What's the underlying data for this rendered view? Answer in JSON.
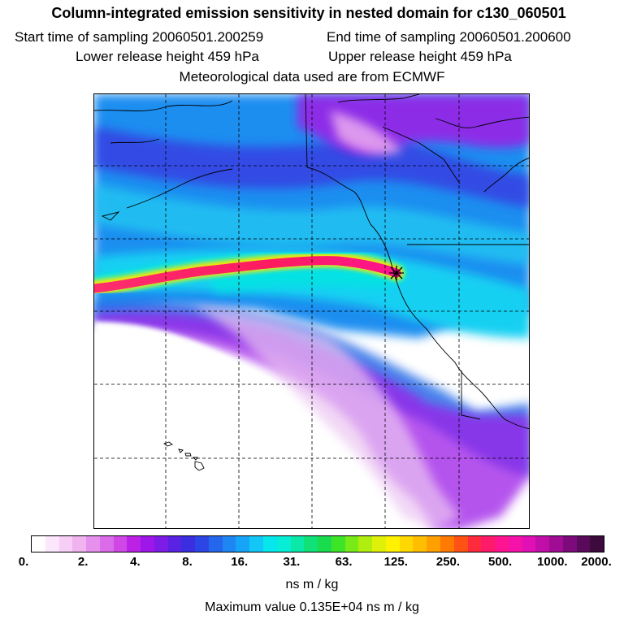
{
  "header": {
    "title": "Column-integrated emission sensitivity in nested domain for c130_060501",
    "start_label": "Start time of sampling 20060501.200259",
    "end_label": "End time of sampling 20060501.200600",
    "lower_label": "Lower release height  459 hPa",
    "upper_label": "Upper release height  459 hPa",
    "met_label": "Meteorological data used are from ECMWF"
  },
  "map": {
    "release_marker": "release-point-star",
    "plume_peak_color": "#ff1493",
    "background_field_color": "#00a8ff"
  },
  "colorbar": {
    "tick_labels": [
      "0.",
      "2.",
      "4.",
      "8.",
      "16.",
      "31.",
      "63.",
      "125.",
      "250.",
      "500.",
      "1000.",
      "2000."
    ],
    "tick_values": [
      0,
      2,
      4,
      8,
      16,
      31,
      63,
      125,
      250,
      500,
      1000,
      2000
    ],
    "colors": [
      "#ffffff",
      "#fbe6fb",
      "#f6cef6",
      "#f0b3f0",
      "#e690ee",
      "#db6be9",
      "#cf47e6",
      "#bb22e6",
      "#9e16e8",
      "#7d1ce6",
      "#5a22e4",
      "#3b2ee0",
      "#2c46e6",
      "#2466ec",
      "#1d86f2",
      "#16a4f8",
      "#12c6f6",
      "#06e6ec",
      "#08eed6",
      "#0ce8a8",
      "#10e278",
      "#18dc4e",
      "#3ee428",
      "#78ea18",
      "#b0ee10",
      "#e0f008",
      "#fff200",
      "#ffd800",
      "#ffbe00",
      "#ffa000",
      "#ff7a00",
      "#ff5214",
      "#ff2a3c",
      "#ff1a6a",
      "#ff1490",
      "#f412a8",
      "#e010b6",
      "#c20ea8",
      "#a00c94",
      "#7c0a7a",
      "#5a0a5a",
      "#3c0a3c"
    ],
    "unit_label": "ns m / kg",
    "max_label": "Maximum value  0.135E+04 ns m / kg"
  }
}
